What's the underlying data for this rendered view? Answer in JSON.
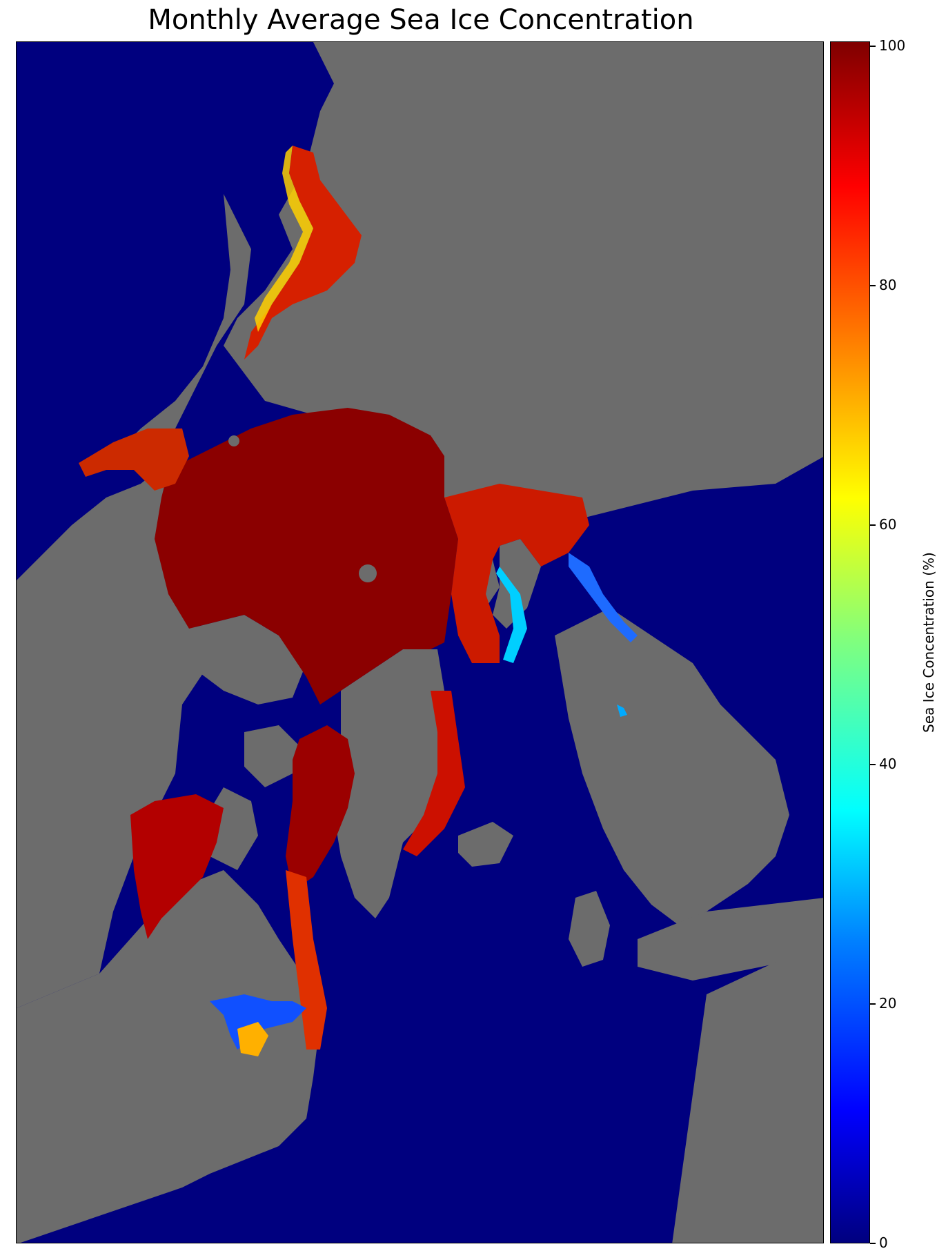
{
  "title": "Monthly Average Sea Ice Concentration",
  "colorbar": {
    "label": "Sea Ice Concentration (%)",
    "ticks": [
      "0",
      "20",
      "40",
      "60",
      "80",
      "100"
    ],
    "colormap": "jet",
    "min": 0,
    "max": 100
  },
  "colors": {
    "ocean": "#00007f",
    "land": "#6c6c6c",
    "ice_full": "#8b0000",
    "ice_high": "#cc0000",
    "ice_mid": "#ff8c00",
    "ice_edge": "#00e5ff"
  }
}
